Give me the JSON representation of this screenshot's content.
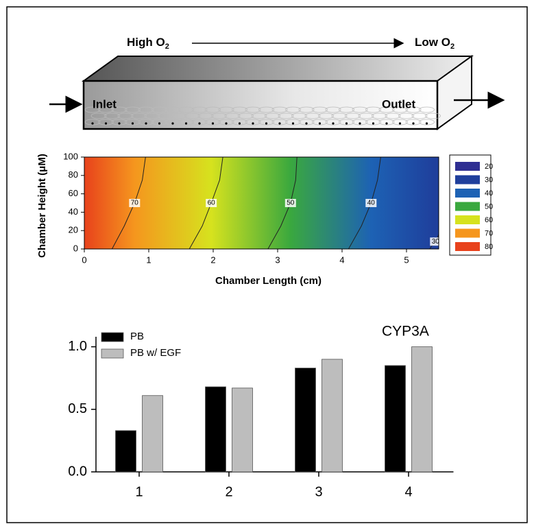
{
  "diagram": {
    "high": {
      "text": "High O",
      "sub": "2"
    },
    "low": {
      "text": "Low O",
      "sub": "2"
    },
    "inlet": "Inlet",
    "outlet": "Outlet"
  },
  "chart_data": [
    {
      "type": "contour",
      "xlabel": "Chamber Length (cm)",
      "ylabel": "Chamber Height (μM)",
      "xlim": [
        0,
        5.5
      ],
      "ylim": [
        0,
        100
      ],
      "xticks": [
        0,
        1,
        2,
        3,
        4,
        5
      ],
      "yticks": [
        0,
        20,
        40,
        60,
        80,
        100
      ],
      "contours": [
        {
          "level": 70,
          "x": [
            0.43,
            0.62,
            0.78,
            0.9,
            0.95
          ],
          "y": [
            0,
            25,
            50,
            75,
            100
          ]
        },
        {
          "level": 60,
          "x": [
            1.63,
            1.83,
            1.97,
            2.1,
            2.15
          ],
          "y": [
            0,
            25,
            50,
            75,
            100
          ]
        },
        {
          "level": 50,
          "x": [
            2.85,
            3.05,
            3.2,
            3.28,
            3.3
          ],
          "y": [
            0,
            25,
            50,
            75,
            100
          ]
        },
        {
          "level": 40,
          "x": [
            4.1,
            4.3,
            4.45,
            4.55,
            4.6
          ],
          "y": [
            0,
            25,
            50,
            75,
            100
          ]
        },
        {
          "level": 30,
          "x": [
            5.36,
            5.4,
            5.45,
            5.48,
            5.5
          ],
          "y": [
            0,
            4,
            8,
            12,
            16
          ]
        }
      ],
      "colorbar": {
        "levels": [
          20,
          30,
          40,
          50,
          60,
          70,
          80
        ],
        "colors": [
          "#2e2e92",
          "#1f3f9c",
          "#1d62b4",
          "#3aa83e",
          "#d6e21e",
          "#f5961e",
          "#e8421c"
        ]
      }
    },
    {
      "type": "bar",
      "annotation": "CYP3A",
      "categories": [
        "1",
        "2",
        "3",
        "4"
      ],
      "series": [
        {
          "name": "PB",
          "color": "#000000",
          "values": [
            0.33,
            0.68,
            0.83,
            0.85
          ]
        },
        {
          "name": "PB w/ EGF",
          "color": "#bdbdbd",
          "values": [
            0.61,
            0.67,
            0.9,
            1.0
          ]
        }
      ],
      "ylim": [
        0,
        1.08
      ],
      "yticks": [
        {
          "value": 0,
          "label": "0.0"
        },
        {
          "value": 0.5,
          "label": "0.5"
        },
        {
          "value": 1,
          "label": "1.0"
        }
      ],
      "legend": "upper left"
    }
  ]
}
